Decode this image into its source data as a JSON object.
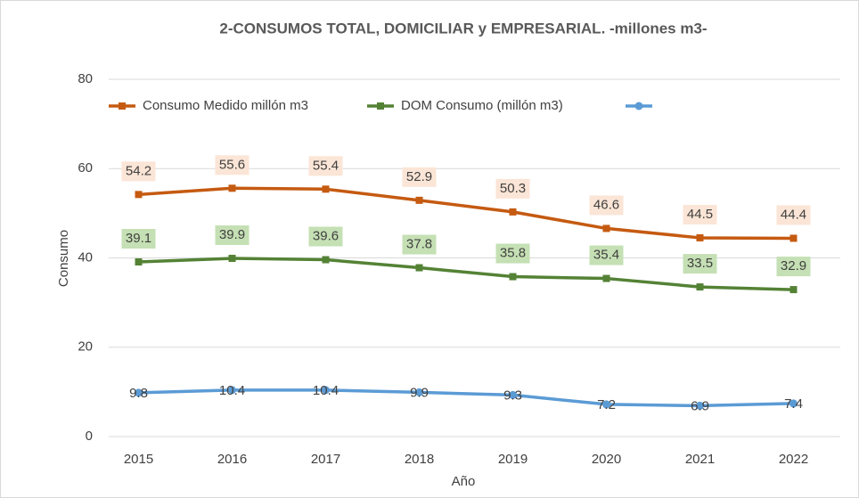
{
  "chart_data": {
    "type": "line",
    "title": "2-CONSUMOS TOTAL, DOMICILIAR y EMPRESARIAL. -millones m3-",
    "x_label": "Año",
    "y_label": "Consumo",
    "categories": [
      "2015",
      "2016",
      "2017",
      "2018",
      "2019",
      "2020",
      "2021",
      "2022"
    ],
    "series": [
      {
        "name": "Consumo Medido millón m3",
        "color": "#c55a11",
        "label_bg": "#fbe5d6",
        "marker": "square",
        "values": [
          54.2,
          55.6,
          55.4,
          52.9,
          50.3,
          46.6,
          44.5,
          44.4
        ]
      },
      {
        "name": "DOM Consumo (millón m3)",
        "color": "#548235",
        "label_bg": "#c5e0b4",
        "marker": "square",
        "values": [
          39.1,
          39.9,
          39.6,
          37.8,
          35.8,
          35.4,
          33.5,
          32.9
        ]
      },
      {
        "color": "#5b9bd5",
        "marker": "circle",
        "values": [
          9.8,
          10.4,
          10.4,
          9.9,
          9.3,
          7.2,
          6.9,
          7.4
        ]
      }
    ],
    "ylim": [
      0,
      80
    ],
    "yticks": [
      0,
      20,
      40,
      60,
      80
    ],
    "grid": true,
    "legend": "top"
  }
}
